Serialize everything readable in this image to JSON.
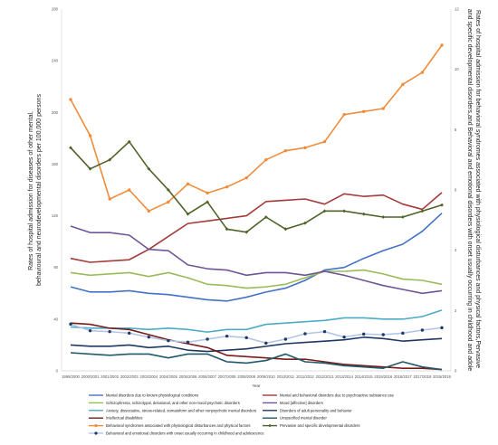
{
  "chart_data": {
    "type": "line",
    "xlabel": "Year",
    "ylabel_left": "Rates of hospital admission for diseases of other mental, behavioural and neurodevelopmental disorders per 100,000 persons",
    "ylabel_right": "Rates of hospital admission for behavioral syndromes associated with physiological disturbances and physical factors,Pervasive and specific developmental disorders,and Behavioral and emotional disorders with onset usually occurring in childhood and adole",
    "ylim_left": [
      0,
      280
    ],
    "ylim_right": [
      0,
      12
    ],
    "yticks_left": [
      0,
      40,
      80,
      120,
      160,
      200,
      240,
      280
    ],
    "yticks_right": [
      0,
      2,
      4,
      6,
      8,
      10,
      12
    ],
    "grid": false,
    "legend_position": "bottom",
    "categories": [
      "1999/2000",
      "2000/2001",
      "2001/2002",
      "2002/2003",
      "2003/2004",
      "2004/2005",
      "2005/2006",
      "2006/2007",
      "2007/2008",
      "2008/2009",
      "2009/2010",
      "2010/2011",
      "2011/2012",
      "2012/2013",
      "2013/2014",
      "2014/2015",
      "2015/2016",
      "2016/2017",
      "2017/2018",
      "2018/2019"
    ],
    "series": [
      {
        "name": "Mental disorders due to known physiological conditions",
        "axis": "left",
        "color": "#4472c4",
        "marker": "none",
        "values": [
          65,
          61,
          61,
          62,
          60,
          59,
          57,
          55,
          54,
          57,
          61,
          64,
          70,
          78,
          80,
          87,
          93,
          98,
          108,
          122
        ]
      },
      {
        "name": "Mental and behavioral disorders due to psychoactive substance use",
        "axis": "left",
        "color": "#a53a3a",
        "marker": "none",
        "values": [
          87,
          84,
          85,
          86,
          94,
          104,
          114,
          116,
          118,
          120,
          131,
          132,
          133,
          129,
          137,
          135,
          136,
          129,
          125,
          138
        ]
      },
      {
        "name": "Schizophrenia, schizotypal, delusional, and other non-mood psychotic disorders",
        "axis": "left",
        "color": "#9bbb59",
        "marker": "none",
        "values": [
          76,
          74,
          75,
          76,
          73,
          76,
          72,
          67,
          66,
          64,
          65,
          67,
          72,
          77,
          77,
          78,
          75,
          71,
          70,
          67
        ]
      },
      {
        "name": "Mood [affective] disorders",
        "axis": "left",
        "color": "#6f5597",
        "marker": "none",
        "values": [
          112,
          107,
          107,
          105,
          94,
          93,
          82,
          79,
          78,
          74,
          76,
          76,
          74,
          77,
          74,
          70,
          66,
          63,
          60,
          62
        ]
      },
      {
        "name": "Anxiety, dissociative, stress-related, somatoform and other nonpsychotic mental disorders",
        "axis": "left",
        "color": "#4bacc6",
        "marker": "none",
        "values": [
          34,
          33,
          33,
          33,
          32,
          33,
          32,
          30,
          32,
          32,
          36,
          37,
          38,
          39,
          41,
          41,
          40,
          40,
          42,
          47
        ]
      },
      {
        "name": "Disorders of adult personality and behavior",
        "axis": "left",
        "color": "#1f3864",
        "marker": "none",
        "values": [
          20,
          19,
          19,
          20,
          18,
          19,
          16,
          15,
          16,
          17,
          19,
          21,
          22,
          23,
          24,
          26,
          25,
          23,
          24,
          25
        ]
      },
      {
        "name": "Intellectual disabilities",
        "axis": "left",
        "color": "#7b1c1c",
        "marker": "none",
        "values": [
          37,
          36,
          33,
          32,
          28,
          24,
          21,
          18,
          12,
          11,
          10,
          9,
          9,
          7,
          5,
          4,
          3,
          2,
          2,
          1
        ]
      },
      {
        "name": "Unspecified mental disorder",
        "axis": "left",
        "color": "#215968",
        "marker": "none",
        "values": [
          14,
          13,
          12,
          13,
          13,
          10,
          13,
          13,
          7,
          6,
          8,
          13,
          7,
          6,
          4,
          3,
          2,
          7,
          3,
          1
        ]
      },
      {
        "name": "Behavioral syndromes associated with physiological disturbances and physical factors",
        "axis": "right",
        "color": "#f08c3c",
        "marker": "circle",
        "values": [
          9.0,
          7.8,
          5.7,
          6.0,
          5.3,
          5.6,
          6.2,
          5.9,
          6.1,
          6.4,
          7.0,
          7.3,
          7.4,
          7.6,
          8.5,
          8.6,
          8.7,
          9.5,
          9.9,
          10.8
        ]
      },
      {
        "name": "Pervasive and specific developmental disorders",
        "axis": "right",
        "color": "#4f6228",
        "marker": "diamond",
        "values": [
          7.4,
          6.7,
          7.0,
          7.6,
          6.7,
          6.0,
          5.2,
          5.6,
          4.7,
          4.6,
          5.1,
          4.7,
          4.9,
          5.3,
          5.3,
          5.2,
          5.1,
          5.1,
          5.3,
          5.5
        ]
      },
      {
        "name": "Behavioral and emotional disorders with onset usually occurring in childhood and adolescence",
        "axis": "right",
        "color": "#b4c6e7",
        "marker": "circle",
        "values": [
          1.55,
          1.33,
          1.3,
          1.25,
          1.12,
          1.0,
          0.95,
          1.05,
          1.15,
          1.1,
          0.92,
          1.05,
          1.23,
          1.3,
          1.12,
          1.22,
          1.2,
          1.25,
          1.35,
          1.43
        ]
      }
    ]
  }
}
